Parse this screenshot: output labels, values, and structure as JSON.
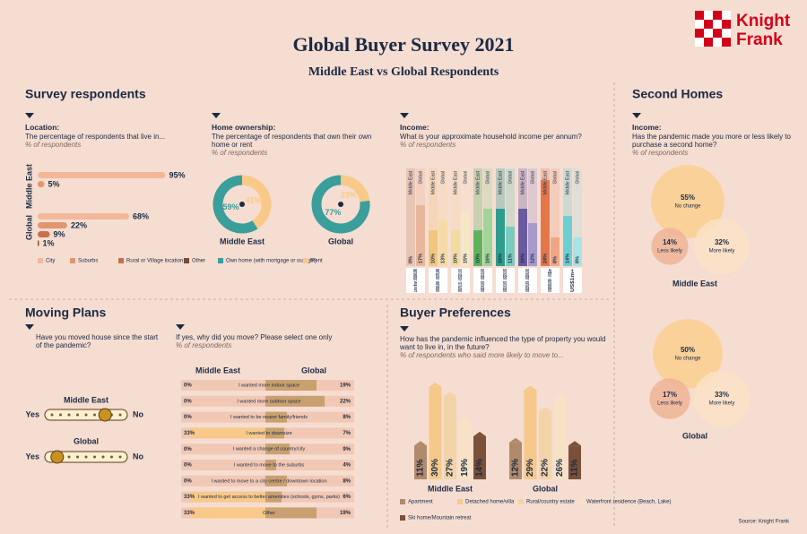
{
  "header": {
    "title": "Global Buyer Survey 2021",
    "subtitle": "Middle East vs Global Respondents"
  },
  "logo": {
    "line1": "Knight",
    "line2": "Frank"
  },
  "sections": {
    "survey": "Survey respondents",
    "second_homes": "Second Homes",
    "moving": "Moving Plans",
    "preferences": "Buyer Preferences"
  },
  "source": "Source: Knight Frank",
  "chart_data": [
    {
      "type": "hbar",
      "title": "Location:",
      "subtitle": "The percentage of respondents that live in...",
      "note": "% of respondents",
      "categories": [
        "Middle East",
        "Global"
      ],
      "series": [
        {
          "name": "City",
          "color": "#f3b89a",
          "values": [
            95,
            68
          ],
          "value_labels": [
            "95%",
            "68%"
          ]
        },
        {
          "name": "Suburbs",
          "color": "#e3966e",
          "values": [
            5,
            22
          ],
          "value_labels": [
            "5%",
            "22%"
          ]
        },
        {
          "name": "Rural or Village location",
          "color": "#c8704a",
          "values": [
            null,
            9
          ],
          "value_labels": [
            null,
            "9%"
          ]
        },
        {
          "name": "Other",
          "color": "#7a4a2e",
          "values": [
            null,
            1
          ],
          "value_labels": [
            null,
            "1%"
          ]
        }
      ],
      "xlim": [
        0,
        100
      ]
    },
    {
      "type": "donut",
      "title": "Home ownership:",
      "subtitle": "The percentage of respondents that own their own home or rent",
      "note": "% of respondents",
      "categories": [
        "Middle East",
        "Global"
      ],
      "series": [
        {
          "name": "Own home (with mortgage or outright)",
          "color": "#3a9e9a",
          "values": [
            59,
            77
          ],
          "value_labels": [
            "59%",
            "77%"
          ]
        },
        {
          "name": "Rent",
          "color": "#f9c98a",
          "values": [
            41,
            23
          ],
          "value_labels": [
            "41%",
            "23%"
          ]
        }
      ]
    },
    {
      "type": "paired_columns",
      "title": "Income:",
      "subtitle": "What is your approximate household income per annum?",
      "note": "% of respondents",
      "categories": [
        "Less than US$50,000",
        "US$50,000 - US$75,000",
        "US$75,000 - US$100,000",
        "US$100,000 - US$150,000",
        "US$150,000 - US$250,000",
        "US$250,000 - US$500,000",
        "US$500,000 - US$1m",
        "US$1m+"
      ],
      "series": [
        {
          "name": "Middle East",
          "colors": [
            "#c48a6e",
            "#f1c77e",
            "#f1dca0",
            "#5fb35c",
            "#2f9c8e",
            "#6a5aa0",
            "#e5764a",
            "#6ccfd4"
          ],
          "values": [
            0,
            10,
            10,
            10,
            16,
            16,
            24,
            14
          ],
          "value_labels": [
            "0%",
            "10%",
            "10%",
            "10%",
            "16%",
            "16%",
            "24%",
            "14%"
          ]
        },
        {
          "name": "Global",
          "colors": [
            "#e8b79b",
            "#f6dba6",
            "#f6e8c2",
            "#9fd59a",
            "#7ccabd",
            "#a79acb",
            "#f0a683",
            "#a8e3e5"
          ],
          "values": [
            17,
            13,
            15,
            16,
            11,
            12,
            8,
            8
          ],
          "value_labels": [
            "17%",
            "13%",
            "15%",
            "16%",
            "11%",
            "12%",
            "8%",
            "8%"
          ]
        }
      ],
      "ylim": [
        0,
        25
      ]
    },
    {
      "type": "venn",
      "title": "Income:",
      "subtitle": "Has the pandemic made you more or less likely to purchase a second home?",
      "note": "% of respondents",
      "categories": [
        "Middle East",
        "Global"
      ],
      "series": [
        {
          "name": "No change",
          "color": "#f9cf8f",
          "values": [
            55,
            50
          ],
          "value_labels": [
            "55%",
            "50%"
          ]
        },
        {
          "name": "Less likely",
          "color": "#eeb497",
          "values": [
            14,
            17
          ],
          "value_labels": [
            "14%",
            "17%"
          ]
        },
        {
          "name": "More likely",
          "color": "#fbe2c6",
          "values": [
            32,
            33
          ],
          "value_labels": [
            "32%",
            "33%"
          ]
        }
      ]
    },
    {
      "type": "slider",
      "question": "Have you moved house since the start of the pandemic?",
      "categories": [
        "Middle East",
        "Global"
      ],
      "values": [
        73,
        15
      ],
      "xlim": [
        0,
        100
      ],
      "left_label": "Yes",
      "right_label": "No"
    },
    {
      "type": "split_bars",
      "question": "If yes, why did you move? Please select one only",
      "note": "% of respondents",
      "categories": [
        "I wanted more indoor space",
        "I wanted more outdoor space",
        "I wanted to be nearer family/friends",
        "I wanted to downsize",
        "I wanted a change of country/city",
        "I wanted to move to the suburbs",
        "I wanted to move to a city centre / downtown location",
        "I wanted to get access to better amenities (schools, gyms, parks)",
        "Other"
      ],
      "series": [
        {
          "name": "Middle East",
          "color": "#f9c98a",
          "values": [
            0,
            0,
            0,
            33,
            0,
            0,
            0,
            33,
            33
          ],
          "value_labels": [
            "0%",
            "0%",
            "0%",
            "33%",
            "0%",
            "0%",
            "0%",
            "33%",
            "33%"
          ]
        },
        {
          "name": "Global",
          "color": "#c9a070",
          "values": [
            19,
            22,
            8,
            7,
            9,
            4,
            8,
            6,
            19
          ],
          "value_labels": [
            "19%",
            "22%",
            "8%",
            "7%",
            "9%",
            "4%",
            "8%",
            "6%",
            "19%"
          ]
        }
      ],
      "xlim": [
        0,
        50
      ]
    },
    {
      "type": "bar",
      "question": "How has the pandemic influenced the type of property you would want to live in, in the future?",
      "note": "% of respondents who said more likely to move to...",
      "categories": [
        "Middle East",
        "Global"
      ],
      "series": [
        {
          "name": "Apartment",
          "color": "#b08a6a",
          "values": [
            11,
            12
          ],
          "value_labels": [
            "11%",
            "12%"
          ]
        },
        {
          "name": "Detached home/villa",
          "color": "#f6c98a",
          "values": [
            30,
            29
          ],
          "value_labels": [
            "30%",
            "29%"
          ]
        },
        {
          "name": "Rural/country estate",
          "color": "#f3d4a8",
          "values": [
            27,
            22
          ],
          "value_labels": [
            "27%",
            "22%"
          ]
        },
        {
          "name": "Waterfront residence (Beach, Lake)",
          "color": "#f8e2c6",
          "values": [
            19,
            26
          ],
          "value_labels": [
            "19%",
            "26%"
          ]
        },
        {
          "name": "Ski home/Mountain retreat",
          "color": "#7a5038",
          "values": [
            14,
            11
          ],
          "value_labels": [
            "14%",
            "11%"
          ]
        }
      ],
      "ylim": [
        0,
        32
      ]
    }
  ]
}
